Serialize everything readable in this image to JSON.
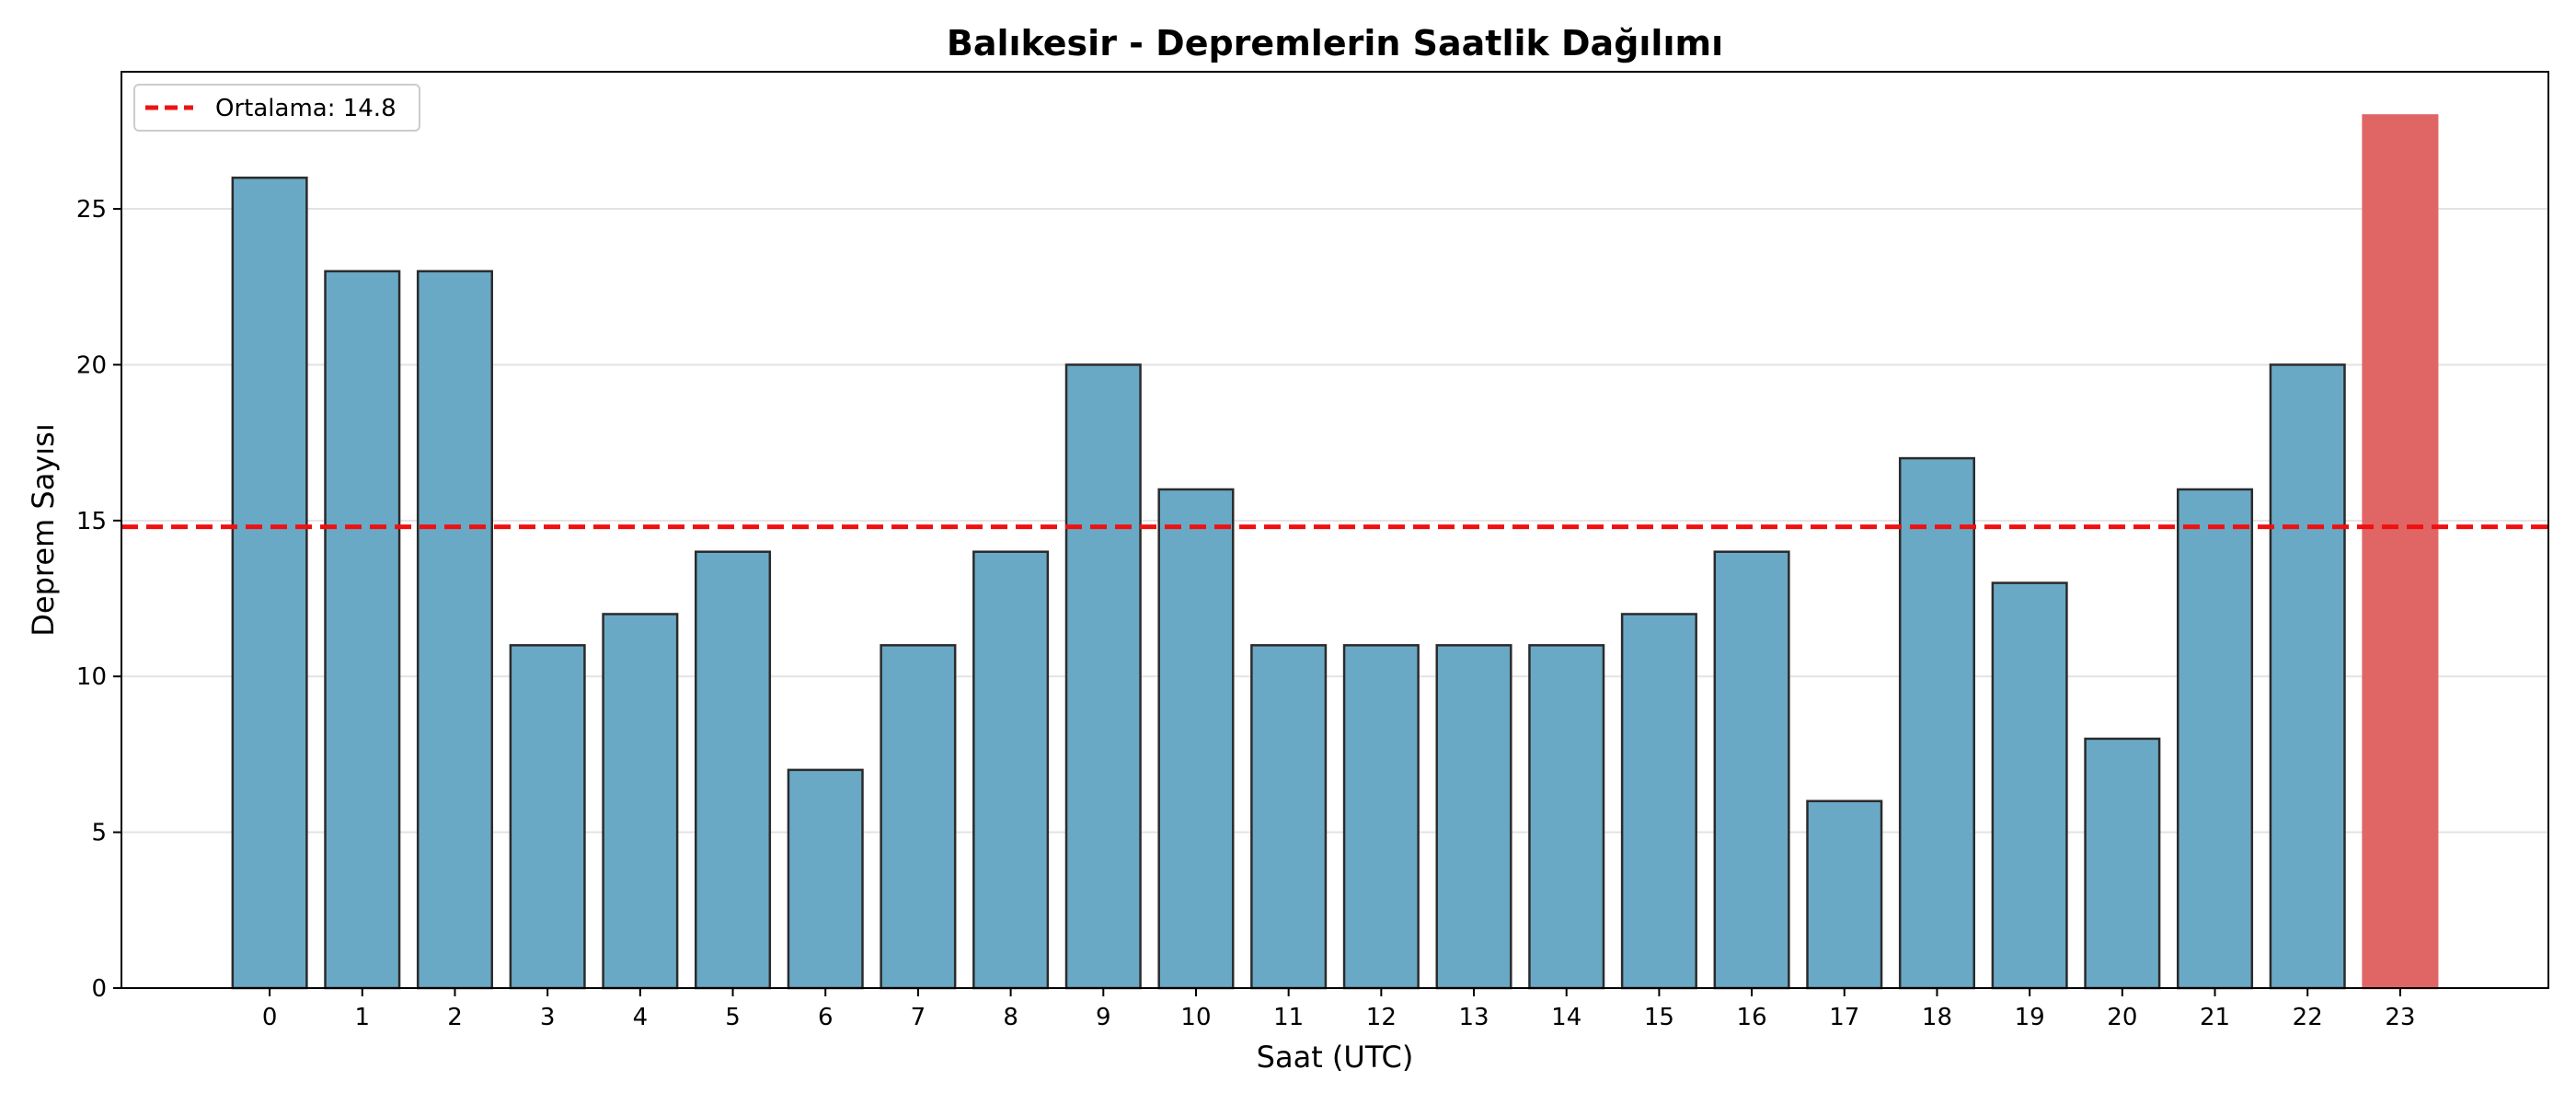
{
  "chart_data": {
    "type": "bar",
    "title": "Balıkesir - Depremlerin Saatlik Dağılımı",
    "xlabel": "Saat (UTC)",
    "ylabel": "Deprem Sayısı",
    "categories": [
      "0",
      "1",
      "2",
      "3",
      "4",
      "5",
      "6",
      "7",
      "8",
      "9",
      "10",
      "11",
      "12",
      "13",
      "14",
      "15",
      "16",
      "17",
      "18",
      "19",
      "20",
      "21",
      "22",
      "23"
    ],
    "values": [
      26,
      23,
      23,
      11,
      12,
      14,
      7,
      11,
      14,
      20,
      16,
      11,
      11,
      11,
      11,
      12,
      14,
      6,
      17,
      13,
      8,
      16,
      20,
      28
    ],
    "highlight_index": 23,
    "ylim": [
      0,
      29.4
    ],
    "yticks": [
      0,
      5,
      10,
      15,
      20,
      25
    ],
    "grid": "y",
    "legend_placement": "top-left",
    "mean_line": {
      "value": 14.8,
      "label": "Ortalama: 14.8"
    },
    "colors": {
      "bar": "#6aa9c5",
      "bar_highlight": "#e06666",
      "bar_edge": "#2b2b2b",
      "mean_line": "#ee1111"
    }
  }
}
